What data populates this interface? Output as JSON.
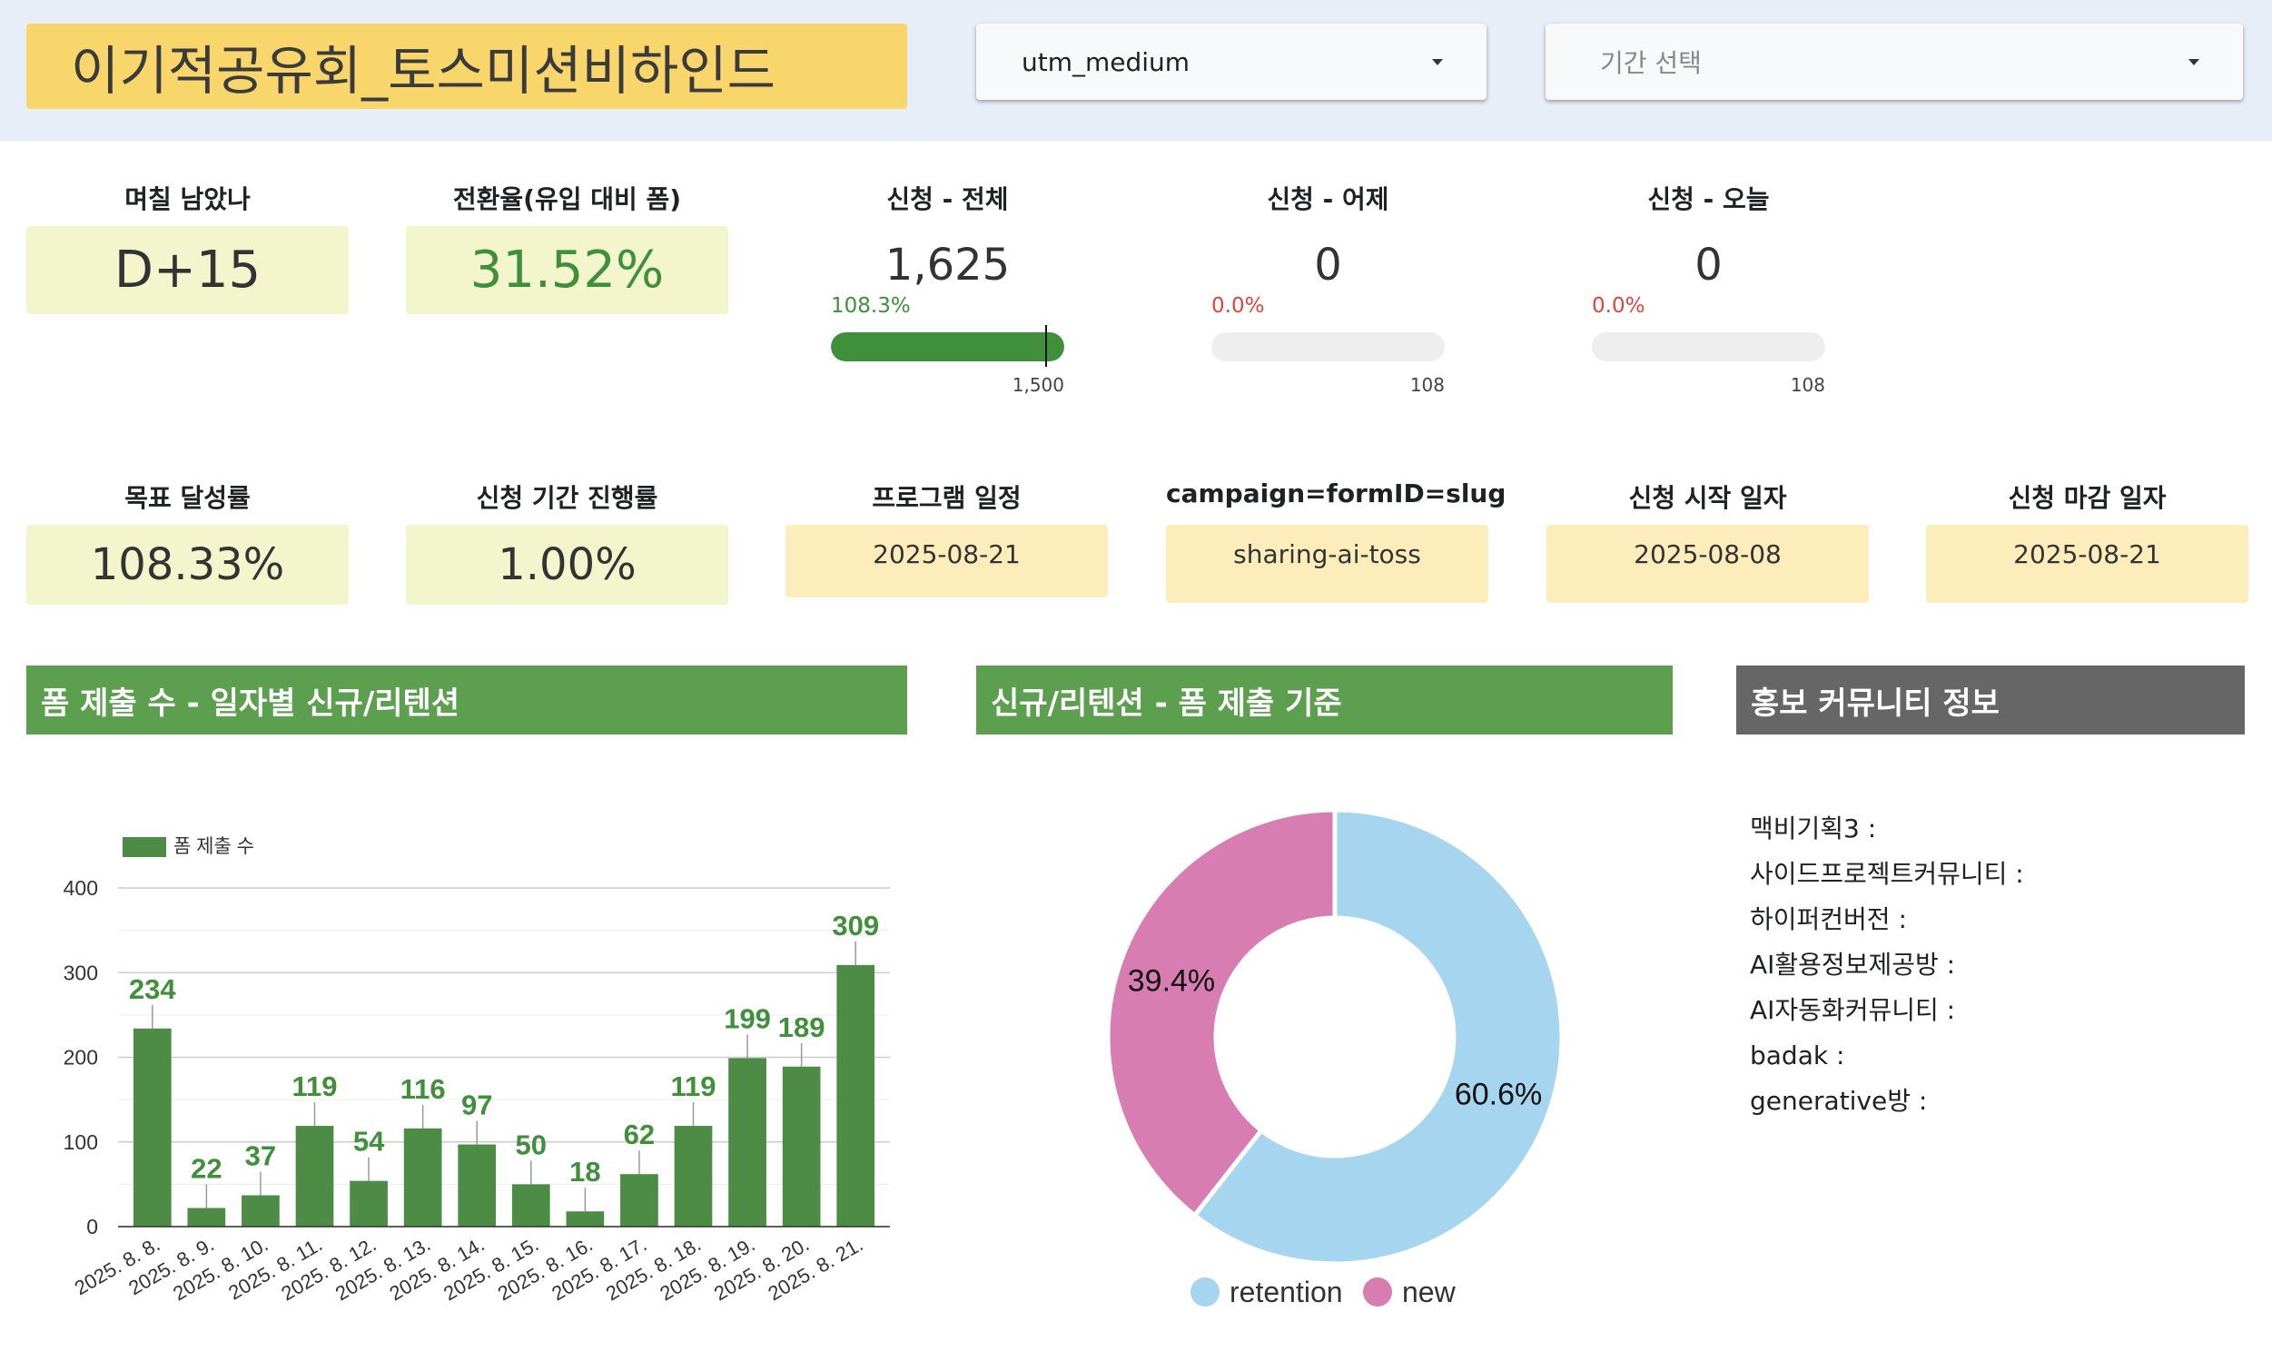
{
  "header": {
    "title": "이기적공유회_토스미션비하인드",
    "dropdown1_value": "utm_medium",
    "dropdown2_placeholder": "기간 선택"
  },
  "kpis_row1": {
    "days_left": {
      "label": "며칠 남았나",
      "value": "D+15"
    },
    "conversion": {
      "label": "전환율(유입 대비 폼)",
      "value": "31.52%"
    }
  },
  "gauges": [
    {
      "label": "신청 - 전체",
      "value": "1,625",
      "pct": "108.3%",
      "max": "1,500",
      "fill": 1.0,
      "target_mark": 0.923,
      "pct_color": "#3f8f3b"
    },
    {
      "label": "신청 - 어제",
      "value": "0",
      "pct": "0.0%",
      "max": "108",
      "fill": 0.0,
      "pct_color": "#e0443a"
    },
    {
      "label": "신청 - 오늘",
      "value": "0",
      "pct": "0.0%",
      "max": "108",
      "fill": 0.0,
      "pct_color": "#e0443a"
    }
  ],
  "kpis_row2": {
    "goal": {
      "label": "목표 달성률",
      "value": "108.33%"
    },
    "period_progress": {
      "label": "신청 기간 진행률",
      "value": "1.00%"
    },
    "program_date": {
      "label": "프로그램 일정",
      "value": "2025-08-21"
    },
    "campaign": {
      "label": "campaign=formID=slug",
      "value": "sharing-ai-toss"
    },
    "start_date": {
      "label": "신청 시작 일자",
      "value": "2025-08-08"
    },
    "end_date": {
      "label": "신청 마감 일자",
      "value": "2025-08-21"
    }
  },
  "sections": {
    "bar_title": "폼 제출 수 - 일자별 신규/리텐션",
    "donut_title": "신규/리텐션 - 폼 제출 기준",
    "community_title": "홍보 커뮤니티 정보"
  },
  "community": [
    "맥비기획3 :",
    "사이드프로젝트커뮤니티 :",
    "하이퍼컨버전 :",
    "AI활용정보제공방 :",
    "AI자동화커뮤니티 :",
    "badak :",
    "generative방 :"
  ],
  "colors": {
    "bar": "#4c8c45",
    "bar_label": "#3f8f3b",
    "retention": "#a6d5ef",
    "new": "#d77db2"
  },
  "chart_data": [
    {
      "type": "bar",
      "categories": [
        "2025. 8. 8.",
        "2025. 8. 9.",
        "2025. 8. 10.",
        "2025. 8. 11.",
        "2025. 8. 12.",
        "2025. 8. 13.",
        "2025. 8. 14.",
        "2025. 8. 15.",
        "2025. 8. 16.",
        "2025. 8. 17.",
        "2025. 8. 18.",
        "2025. 8. 19.",
        "2025. 8. 20.",
        "2025. 8. 21."
      ],
      "series": [
        {
          "name": "폼 제출 수",
          "values": [
            234,
            22,
            37,
            119,
            54,
            116,
            97,
            50,
            18,
            62,
            119,
            199,
            189,
            309
          ]
        }
      ],
      "yticks": [
        "0",
        "100",
        "200",
        "300",
        "400"
      ],
      "ylim": [
        0,
        400
      ],
      "grid": true,
      "legend": "top-left"
    },
    {
      "type": "pie",
      "donut": true,
      "slices": [
        {
          "name": "retention",
          "value": 60.6,
          "label": "60.6%"
        },
        {
          "name": "new",
          "value": 39.4,
          "label": "39.4%"
        }
      ],
      "legend": "bottom"
    }
  ]
}
